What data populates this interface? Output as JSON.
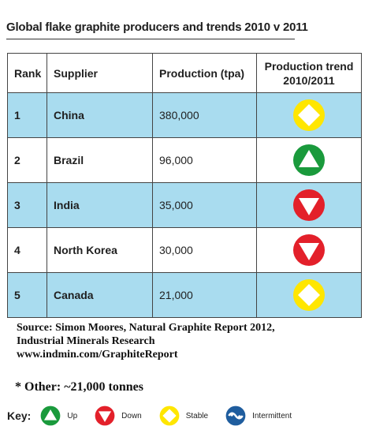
{
  "title": "Global flake graphite producers and trends 2010 v 2011",
  "table": {
    "headers": {
      "rank": "Rank",
      "supplier": "Supplier",
      "production": "Production (tpa)",
      "trend_line1": "Production trend",
      "trend_line2": "2010/2011"
    },
    "rows": [
      {
        "rank": "1",
        "supplier": "China",
        "production": "380,000",
        "trend": "stable"
      },
      {
        "rank": "2",
        "supplier": "Brazil",
        "production": "96,000",
        "trend": "up"
      },
      {
        "rank": "3",
        "supplier": "India",
        "production": "35,000",
        "trend": "down"
      },
      {
        "rank": "4",
        "supplier": "North Korea",
        "production": "30,000",
        "trend": "down"
      },
      {
        "rank": "5",
        "supplier": "Canada",
        "production": "21,000",
        "trend": "stable"
      }
    ]
  },
  "source": {
    "line1": "Source: Simon Moores, Natural Graphite Report 2012,",
    "line2": "Industrial Minerals Research",
    "line3": "www.indmin.com/GraphiteReport"
  },
  "other_note": "* Other: ~21,000 tonnes",
  "key": {
    "label": "Key:",
    "items": [
      {
        "icon": "up-arrow-icon",
        "label": "Up"
      },
      {
        "icon": "down-arrow-icon",
        "label": "Down"
      },
      {
        "icon": "stable-diamond-icon",
        "label": "Stable"
      },
      {
        "icon": "intermittent-icon",
        "label": "Intermittent"
      }
    ]
  },
  "colors": {
    "row_shade": "#a9dcef",
    "up": "#1a9a3c",
    "down": "#e3202a",
    "stable": "#ffe600",
    "intermittent": "#1f5d9e"
  }
}
